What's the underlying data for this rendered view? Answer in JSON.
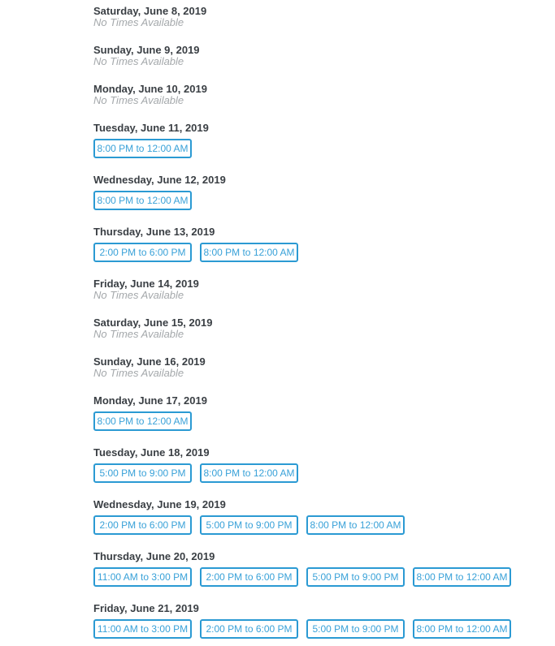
{
  "theme": {
    "accent_color": "#2b9ad3",
    "accent_text_color": "#38a1d8",
    "header_color": "#3a3f44",
    "muted_color": "#a4a8ab",
    "background": "#ffffff"
  },
  "schedule": {
    "no_times_label": "No Times Available",
    "days": [
      {
        "date": "Saturday, June 8, 2019",
        "slots": []
      },
      {
        "date": "Sunday, June 9, 2019",
        "slots": []
      },
      {
        "date": "Monday, June 10, 2019",
        "slots": []
      },
      {
        "date": "Tuesday, June 11, 2019",
        "slots": [
          "8:00 PM to 12:00 AM"
        ]
      },
      {
        "date": "Wednesday, June 12, 2019",
        "slots": [
          "8:00 PM to 12:00 AM"
        ]
      },
      {
        "date": "Thursday, June 13, 2019",
        "slots": [
          "2:00 PM to 6:00 PM",
          "8:00 PM to 12:00 AM"
        ]
      },
      {
        "date": "Friday, June 14, 2019",
        "slots": []
      },
      {
        "date": "Saturday, June 15, 2019",
        "slots": []
      },
      {
        "date": "Sunday, June 16, 2019",
        "slots": []
      },
      {
        "date": "Monday, June 17, 2019",
        "slots": [
          "8:00 PM to 12:00 AM"
        ]
      },
      {
        "date": "Tuesday, June 18, 2019",
        "slots": [
          "5:00 PM to 9:00 PM",
          "8:00 PM to 12:00 AM"
        ]
      },
      {
        "date": "Wednesday, June 19, 2019",
        "slots": [
          "2:00 PM to 6:00 PM",
          "5:00 PM to 9:00 PM",
          "8:00 PM to 12:00 AM"
        ]
      },
      {
        "date": "Thursday, June 20, 2019",
        "slots": [
          "11:00 AM to 3:00 PM",
          "2:00 PM to 6:00 PM",
          "5:00 PM to 9:00 PM",
          "8:00 PM to 12:00 AM"
        ]
      },
      {
        "date": "Friday, June 21, 2019",
        "slots": [
          "11:00 AM to 3:00 PM",
          "2:00 PM to 6:00 PM",
          "5:00 PM to 9:00 PM",
          "8:00 PM to 12:00 AM"
        ]
      }
    ]
  }
}
